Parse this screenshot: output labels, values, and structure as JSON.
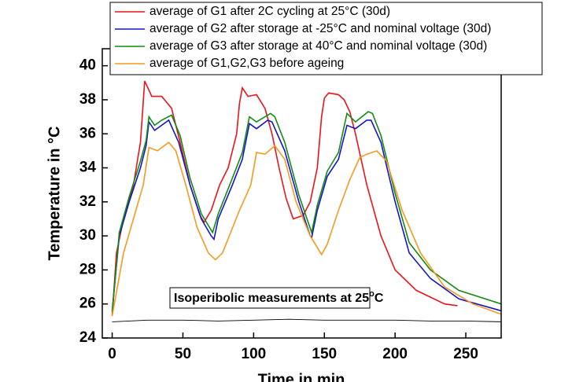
{
  "chart_data": {
    "type": "line",
    "xlabel": "Time in min",
    "ylabel": "Temperature in °C",
    "annotation": {
      "text": "Isoperibolic measurements at 25",
      "superscript": "o",
      "suffix": "C"
    },
    "xlim": [
      -7,
      275
    ],
    "ylim": [
      24,
      41
    ],
    "xticks": [
      0,
      50,
      100,
      150,
      200,
      250
    ],
    "yticks": [
      24,
      26,
      28,
      30,
      32,
      34,
      36,
      38,
      40
    ],
    "series": [
      {
        "name": "average of G1 after 2C cycling at 25°C (30d)",
        "color": "#e8141b",
        "x": [
          0,
          3,
          8,
          15,
          20,
          23,
          28,
          35,
          42,
          48,
          55,
          62,
          65,
          70,
          76,
          82,
          88,
          90,
          92,
          96,
          102,
          108,
          113,
          118,
          123,
          128,
          135,
          140,
          145,
          148,
          150,
          153,
          160,
          164,
          168,
          172,
          180,
          190,
          200,
          215,
          235,
          244
        ],
        "values": [
          25.3,
          29,
          31,
          33,
          35.5,
          39.1,
          38.2,
          38.2,
          37.5,
          35.5,
          33,
          31.2,
          30.8,
          31.5,
          33,
          34,
          36,
          37.8,
          38.7,
          38.2,
          38.3,
          37.5,
          36,
          34,
          32.2,
          31,
          31.2,
          32,
          34,
          37,
          38.1,
          38.4,
          38.3,
          38,
          37.3,
          36,
          33,
          30,
          28,
          26.8,
          26,
          25.9
        ]
      },
      {
        "name": "average of G2 after storage at -25°C and nominal voltage (30d)",
        "color": "#1515c8",
        "x": [
          0,
          5,
          12,
          20,
          24,
          26,
          30,
          35,
          40,
          47,
          55,
          63,
          70,
          72,
          75,
          85,
          92,
          97,
          102,
          110,
          113,
          122,
          132,
          140,
          141,
          145,
          152,
          160,
          166,
          172,
          180,
          183,
          190,
          200,
          210,
          225,
          245,
          275
        ],
        "values": [
          25.6,
          30,
          32,
          34,
          35.3,
          36.7,
          36.2,
          36.5,
          36.8,
          35.5,
          33,
          31,
          30,
          29.8,
          31,
          33,
          34.5,
          36.6,
          36.3,
          36.8,
          36.7,
          35,
          32,
          30,
          29.9,
          31.5,
          33.5,
          34.5,
          36.5,
          36.3,
          36.8,
          36.8,
          35.5,
          32,
          29,
          27.5,
          26.3,
          25.6
        ]
      },
      {
        "name": "average of G3 after storage at 40°C and nominal voltage (30d)",
        "color": "#138a13",
        "x": [
          0,
          5,
          12,
          20,
          24,
          26,
          30,
          35,
          42,
          48,
          55,
          63,
          71,
          75,
          85,
          92,
          97,
          102,
          112,
          115,
          122,
          132,
          141,
          145,
          152,
          160,
          166,
          172,
          181,
          184,
          190,
          200,
          210,
          225,
          245,
          275
        ],
        "values": [
          25.5,
          30.2,
          32.3,
          34.4,
          35.6,
          37,
          36.5,
          36.8,
          37.1,
          35.9,
          33.4,
          31.3,
          30.2,
          31.3,
          33.4,
          34.9,
          37,
          36.7,
          37.2,
          37,
          35.5,
          32.4,
          30.2,
          31.8,
          33.8,
          34.9,
          37.2,
          36.7,
          37.3,
          37.2,
          35.9,
          32.5,
          29.6,
          28,
          26.8,
          26
        ]
      },
      {
        "name": "average of G1,G2,G3 before ageing",
        "color": "#f39a1f",
        "x": [
          0,
          8,
          15,
          22,
          26,
          32,
          40,
          45,
          52,
          60,
          68,
          73,
          78,
          90,
          98,
          102,
          108,
          115,
          122,
          130,
          140,
          148,
          152,
          160,
          168,
          175,
          180,
          187,
          194,
          205,
          218,
          235,
          255,
          275
        ],
        "values": [
          25.3,
          29,
          31,
          33,
          35.2,
          35,
          35.5,
          35,
          33,
          30.5,
          29,
          28.6,
          29,
          31.5,
          33,
          34.9,
          34.8,
          35.3,
          34.5,
          32,
          30,
          28.9,
          29.5,
          31.5,
          33.3,
          34.6,
          34.8,
          35,
          34.4,
          31.5,
          29,
          27,
          26,
          25.4
        ]
      },
      {
        "color": "#000000",
        "x": [
          0,
          25,
          50,
          75,
          100,
          125,
          150,
          175,
          200,
          225,
          250,
          275
        ],
        "values": [
          24.95,
          25.05,
          25.05,
          25.0,
          25.05,
          25.1,
          25.05,
          25.05,
          25.05,
          25.0,
          25.0,
          24.95
        ]
      }
    ]
  }
}
